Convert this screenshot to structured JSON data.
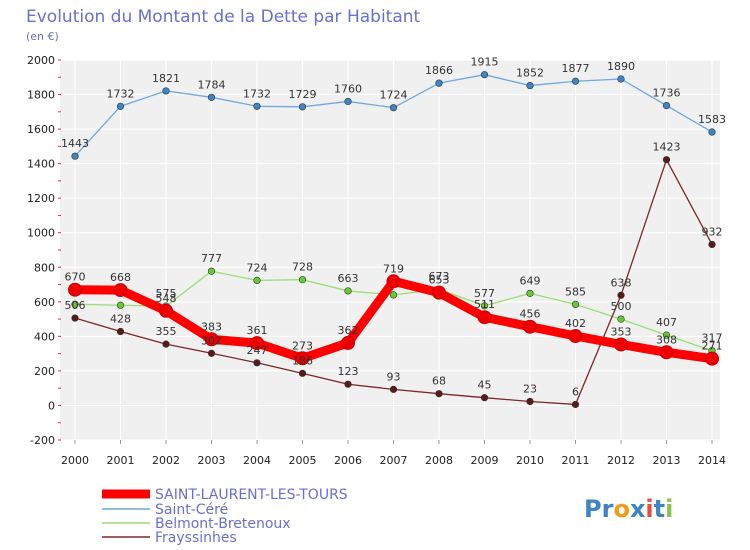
{
  "colors": {
    "background": "#ffffff",
    "plot_background": "#f0f0f0",
    "grid": "#ffffff",
    "title": "#6a6ed6",
    "frame": "#bbbbbb"
  },
  "chart_data": {
    "type": "line",
    "title": "Evolution du Montant de la Dette par Habitant",
    "subtitle": "(en €)",
    "xlabel": "",
    "ylabel": "",
    "ylim": [
      -200,
      2000
    ],
    "yticks": [
      -200,
      0,
      200,
      400,
      600,
      800,
      1000,
      1200,
      1400,
      1600,
      1800,
      2000
    ],
    "categories": [
      "2000",
      "2001",
      "2002",
      "2003",
      "2004",
      "2005",
      "2006",
      "2007",
      "2008",
      "2009",
      "2010",
      "2011",
      "2012",
      "2013",
      "2014"
    ],
    "grid": true,
    "legend_position": "bottom-left",
    "series": [
      {
        "name": "SAINT-LAURENT-LES-TOURS",
        "color": "#ff0000",
        "marker_fill": "#ee0000",
        "thick": true,
        "values": [
          670,
          668,
          548,
          383,
          361,
          273,
          362,
          719,
          653,
          511,
          456,
          402,
          353,
          308,
          271
        ],
        "labels": [
          "670",
          "668",
          "548",
          "383",
          "361",
          "273",
          "362",
          "719",
          "653",
          "511",
          "456",
          "402",
          "353",
          "308",
          "271"
        ]
      },
      {
        "name": "Saint-Céré",
        "color": "#6fa8dc",
        "marker_fill": "#3d85c6",
        "thick": false,
        "values": [
          1443,
          1732,
          1821,
          1784,
          1732,
          1729,
          1760,
          1724,
          1866,
          1915,
          1852,
          1877,
          1890,
          1736,
          1583
        ],
        "labels": [
          "1443",
          "1732",
          "1821",
          "1784",
          "1732",
          "1729",
          "1760",
          "1724",
          "1866",
          "1915",
          "1852",
          "1877",
          "1890",
          "1736",
          "1583"
        ]
      },
      {
        "name": "Belmont-Bretenoux",
        "color": "#99dd77",
        "marker_fill": "#66cc33",
        "thick": false,
        "values": [
          586,
          580,
          575,
          777,
          724,
          728,
          663,
          640,
          673,
          577,
          649,
          585,
          500,
          407,
          317
        ],
        "labels": [
          "",
          "",
          "575",
          "777",
          "724",
          "728",
          "663",
          "",
          "673",
          "577",
          "649",
          "585",
          "500",
          "407",
          "317"
        ]
      },
      {
        "name": "Frayssinhes",
        "color": "#7b2828",
        "marker_fill": "#5a1a1a",
        "thick": false,
        "values": [
          506,
          428,
          355,
          302,
          247,
          186,
          123,
          93,
          68,
          45,
          23,
          6,
          638,
          1423,
          932
        ],
        "labels": [
          "506",
          "428",
          "355",
          "302",
          "247",
          "186",
          "123",
          "93",
          "68",
          "45",
          "23",
          "6",
          "638",
          "1423",
          "932"
        ]
      }
    ]
  },
  "logo": {
    "text": "Proxiti",
    "letters": [
      "P",
      "r",
      "o",
      "x",
      "i",
      "t",
      "i"
    ],
    "letter_colors": [
      "#3d85c6",
      "#3d85c6",
      "#f39c12",
      "#3d85c6",
      "#e74c3c",
      "#3d85c6",
      "#8bc34a"
    ]
  }
}
